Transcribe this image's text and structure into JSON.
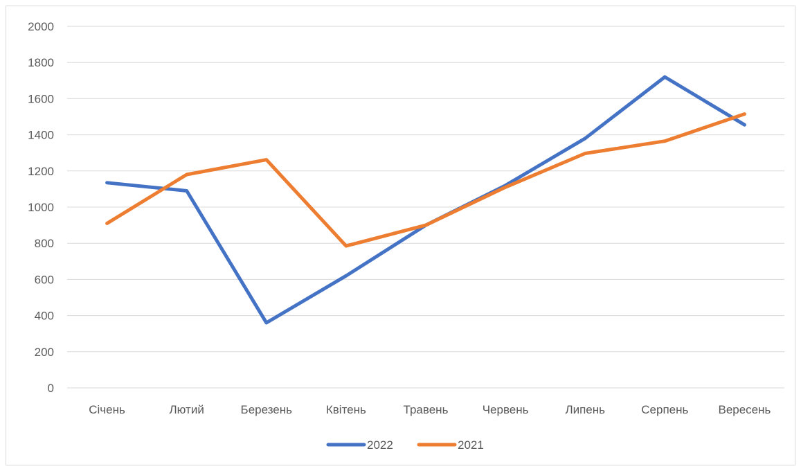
{
  "chart_data": {
    "type": "line",
    "categories": [
      "Січень",
      "Лютий",
      "Березень",
      "Квітень",
      "Травень",
      "Червень",
      "Липень",
      "Серпень",
      "Вересень"
    ],
    "series": [
      {
        "name": "2022",
        "color": "#4472C4",
        "values": [
          1135,
          1090,
          360,
          620,
          900,
          1120,
          1380,
          1720,
          1455
        ]
      },
      {
        "name": "2021",
        "color": "#ED7D31",
        "values": [
          910,
          1180,
          1262,
          785,
          900,
          1110,
          1297,
          1365,
          1515
        ]
      }
    ],
    "yticks": [
      "0",
      "200",
      "400",
      "600",
      "800",
      "1000",
      "1200",
      "1400",
      "1600",
      "1800",
      "2000"
    ],
    "ylim": [
      0,
      2000
    ],
    "grid": true,
    "legend_position": "bottom",
    "title": "",
    "xlabel": "",
    "ylabel": ""
  }
}
